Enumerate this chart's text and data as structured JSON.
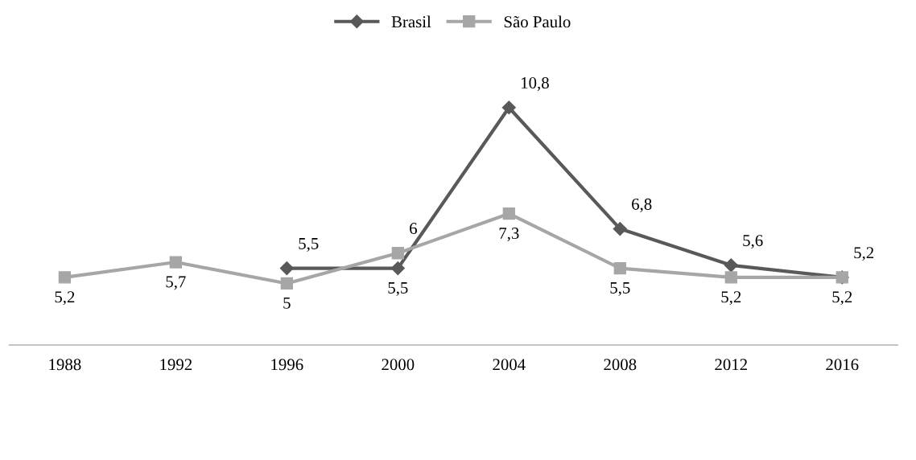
{
  "chart_data": {
    "type": "line",
    "categories": [
      "1988",
      "1992",
      "1996",
      "2000",
      "2004",
      "2008",
      "2012",
      "2016"
    ],
    "series": [
      {
        "name": "Brasil",
        "color": "#595959",
        "marker": "diamond",
        "values": [
          null,
          null,
          5.5,
          5.5,
          10.8,
          6.8,
          5.6,
          5.2
        ],
        "value_labels": [
          null,
          null,
          "5,5",
          "5,5",
          "10,8",
          "6,8",
          "5,6",
          "5,2"
        ]
      },
      {
        "name": "São Paulo",
        "color": "#a6a6a6",
        "marker": "square",
        "values": [
          5.2,
          5.7,
          5.0,
          6.0,
          7.3,
          5.5,
          5.2,
          5.2
        ],
        "value_labels": [
          "5,2",
          "5,7",
          "5",
          "6",
          "7,3",
          "5,5",
          "5,2",
          "5,2"
        ]
      }
    ],
    "legend": "top",
    "grid": false,
    "tick_labels": "x",
    "line_style": "solid"
  }
}
